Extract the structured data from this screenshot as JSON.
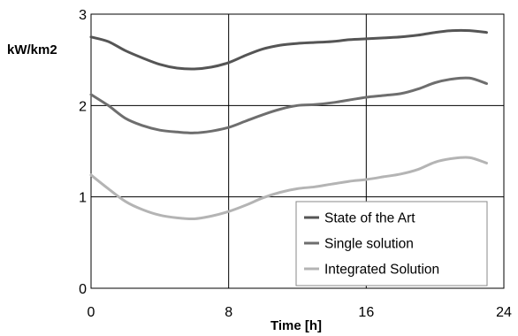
{
  "chart_data": {
    "type": "line",
    "xlabel": "Time [h]",
    "ylabel": "kW/km2",
    "xlim": [
      0,
      24
    ],
    "ylim": [
      0,
      3
    ],
    "xticks": [
      0,
      8,
      16,
      24
    ],
    "yticks": [
      0,
      1,
      2,
      3
    ],
    "grid": true,
    "legend_position": "bottom-right",
    "x": [
      0,
      1,
      2,
      3,
      4,
      5,
      6,
      7,
      8,
      9,
      10,
      11,
      12,
      13,
      14,
      15,
      16,
      17,
      18,
      19,
      20,
      21,
      22,
      23
    ],
    "series": [
      {
        "name": "State of the Art",
        "color": "#555555",
        "values": [
          2.75,
          2.7,
          2.6,
          2.52,
          2.45,
          2.41,
          2.4,
          2.42,
          2.47,
          2.55,
          2.62,
          2.66,
          2.68,
          2.69,
          2.7,
          2.72,
          2.73,
          2.74,
          2.75,
          2.77,
          2.8,
          2.82,
          2.82,
          2.8
        ]
      },
      {
        "name": "Single solution",
        "color": "#6e6e6e",
        "values": [
          2.12,
          2.0,
          1.86,
          1.78,
          1.73,
          1.71,
          1.7,
          1.72,
          1.76,
          1.83,
          1.9,
          1.96,
          2.0,
          2.01,
          2.03,
          2.06,
          2.09,
          2.11,
          2.13,
          2.18,
          2.25,
          2.29,
          2.3,
          2.24
        ]
      },
      {
        "name": "Integrated Solution",
        "color": "#b4b4b4",
        "values": [
          1.24,
          1.09,
          0.95,
          0.86,
          0.8,
          0.77,
          0.76,
          0.79,
          0.84,
          0.91,
          0.99,
          1.05,
          1.09,
          1.11,
          1.14,
          1.17,
          1.19,
          1.22,
          1.25,
          1.3,
          1.38,
          1.42,
          1.43,
          1.37
        ]
      }
    ]
  }
}
